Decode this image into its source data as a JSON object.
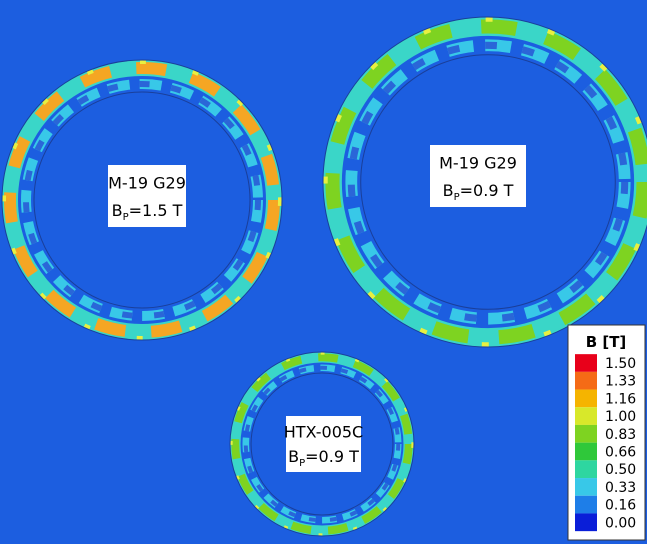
{
  "plots": [
    {
      "material": "M-19 G29",
      "field": {
        "symbol": "B",
        "subscript": "P",
        "value": "=1.5 T"
      }
    },
    {
      "material": "M-19 G29",
      "field": {
        "symbol": "B",
        "subscript": "P",
        "value": "=0.9 T"
      }
    },
    {
      "material": "HTX-005C",
      "field": {
        "symbol": "B",
        "subscript": "P",
        "value": "=0.9 T"
      }
    }
  ],
  "legend": {
    "title": "B [T]",
    "labels": [
      "1.50",
      "1.33",
      "1.16",
      "1.00",
      "0.83",
      "0.66",
      "0.50",
      "0.33",
      "0.16",
      "0.00"
    ]
  }
}
